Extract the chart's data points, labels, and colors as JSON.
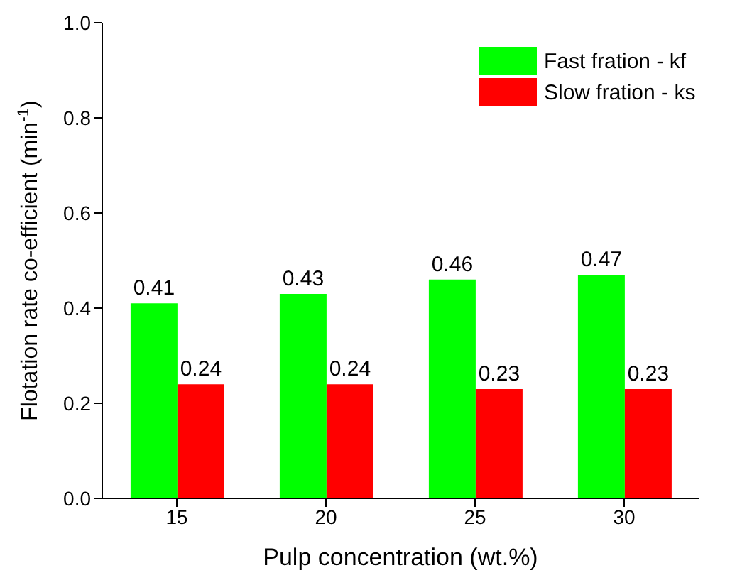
{
  "chart_data": {
    "type": "bar",
    "xlabel": "Pulp concentration (wt.%)",
    "ylabel": "Flotation rate co-efficient (min$^{-1}$)",
    "categories": [
      "15",
      "20",
      "25",
      "30"
    ],
    "series": [
      {
        "name": "Fast fration - kf",
        "color": "#00ff00",
        "values": [
          0.41,
          0.43,
          0.46,
          0.47
        ]
      },
      {
        "name": "Slow fration - ks",
        "color": "#ff0000",
        "values": [
          0.24,
          0.24,
          0.23,
          0.23
        ]
      }
    ],
    "ylim": [
      0,
      1
    ],
    "yticks": [
      {
        "value": 0,
        "label": "0.0"
      },
      {
        "value": 0.2,
        "label": "0.2"
      },
      {
        "value": 0.4,
        "label": "0.4"
      },
      {
        "value": 0.6,
        "label": "0.6"
      },
      {
        "value": 0.8,
        "label": "0.8"
      },
      {
        "value": 1,
        "label": "1.0"
      }
    ],
    "data_labels": true,
    "legend": "top right",
    "grid": false
  }
}
